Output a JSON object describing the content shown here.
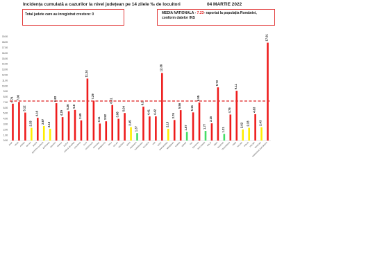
{
  "header": {
    "title": "Incidența cumulată a cazurilor la nivel județean pe 14 zilele ‰ de locuitori",
    "date": "04 MARTIE 2022"
  },
  "box_left": {
    "text": "Total judete care au inregistrat crestere: 0"
  },
  "box_right": {
    "prefix": "MEDIA NATIONALA - ",
    "value": "7.23",
    "suffix": "- raportat la populația României,",
    "line2": "conform datelor INS"
  },
  "colors": {
    "red": "#ee1c1c",
    "yellow": "#ffee00",
    "green": "#44dd66",
    "mean_line": "#e03030"
  },
  "chart_data": {
    "type": "bar",
    "ylim": [
      0,
      19
    ],
    "yticks": [
      "0.00",
      "1.00",
      "2.00",
      "3.00",
      "4.00",
      "5.00",
      "6.00",
      "7.00",
      "8.00",
      "9.00",
      "10.00",
      "11.00",
      "12.00",
      "13.00",
      "14.00",
      "15.00",
      "16.00",
      "17.00",
      "18.00",
      "19.00"
    ],
    "mean": 7.23,
    "categories": [
      "ALBA",
      "ARAD",
      "ARGES",
      "BACAU",
      "BIHOR",
      "BISTRITA-NASAUD",
      "BOTOSANI",
      "BRASOV",
      "BRAILA",
      "BUZAU",
      "CARAS-SEVERIN",
      "CALARASI",
      "CLUJ",
      "CONSTANTA",
      "COVASNA",
      "DAMBOVITA",
      "DOLJ",
      "GALATI",
      "GIURGIU",
      "GORJ",
      "HARGHITA",
      "HUNEDOARA",
      "IALOMITA",
      "IASI",
      "ILFOV",
      "MARAMURES",
      "MEHEDINTI",
      "MURES",
      "NEAMT",
      "OLT",
      "PRAHOVA",
      "SATU MARE",
      "SALAJ",
      "SIBIU",
      "SUCEAVA",
      "TELEORMAN",
      "TIMIS",
      "TULCEA",
      "VASLUI",
      "VALCEA",
      "VRANCEA",
      "MUNICIPIUL BUCURESTI"
    ],
    "values": [
      6.74,
      7.06,
      5.12,
      2.33,
      4.16,
      2.67,
      2.15,
      6.83,
      4.29,
      5.36,
      5.6,
      3.69,
      11.34,
      7.29,
      3.11,
      3.52,
      6.51,
      3.98,
      5.04,
      2.45,
      1.37,
      6.2,
      4.41,
      4.42,
      12.36,
      2.15,
      3.76,
      5.56,
      1.57,
      5.15,
      6.95,
      1.77,
      3.15,
      9.73,
      1.21,
      4.76,
      9.11,
      2.02,
      2.33,
      4.83,
      2.43,
      17.91
    ],
    "labels": [
      "6.74",
      "7.06",
      "5.12",
      "2.33",
      "4.16",
      "2.67",
      "2.15",
      "6.83",
      "4.29",
      "5.36",
      "5.6",
      "3.69",
      "11.34",
      "7.29",
      "3.11",
      "3.52",
      "6.51",
      "3.98",
      "5.04",
      "2.45",
      "1.37",
      "6.2",
      "4.41",
      "4.42",
      "12.36",
      "2.15",
      "3.76",
      "5.56",
      "1.57",
      "5.15",
      "6.95",
      "1.77",
      "3.15",
      "9.73",
      "1.21",
      "4.76",
      "9.11",
      "2.02",
      "2.33",
      "4.83",
      "2.43",
      "17.91"
    ],
    "bar_colors": [
      "red",
      "red",
      "red",
      "yellow",
      "red",
      "yellow",
      "yellow",
      "red",
      "red",
      "red",
      "red",
      "red",
      "red",
      "red",
      "red",
      "red",
      "red",
      "red",
      "red",
      "yellow",
      "green",
      "red",
      "red",
      "red",
      "red",
      "yellow",
      "red",
      "red",
      "green",
      "red",
      "red",
      "green",
      "red",
      "red",
      "green",
      "red",
      "red",
      "yellow",
      "yellow",
      "red",
      "yellow",
      "red"
    ]
  }
}
